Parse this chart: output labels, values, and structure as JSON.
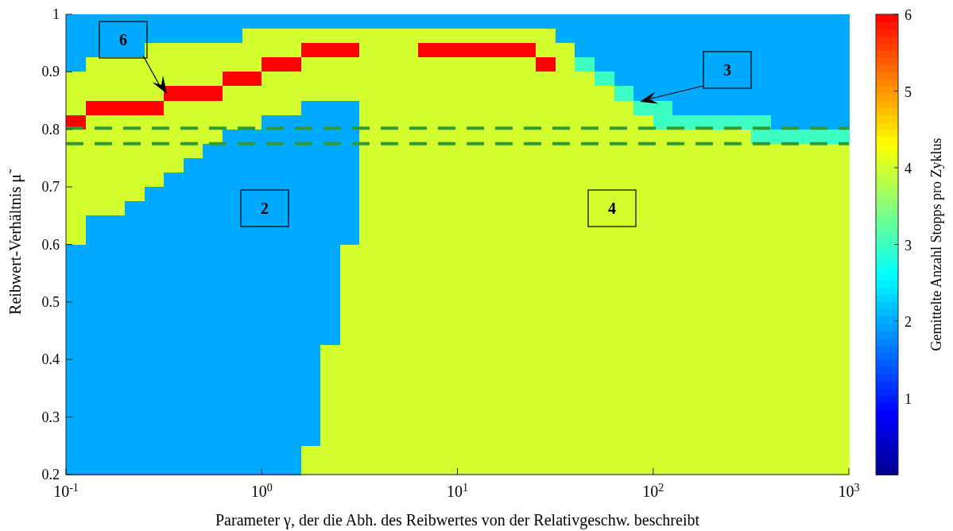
{
  "chart_data": {
    "type": "heatmap",
    "xlabel": "Parameter γ, der die Abh. des Reibwertes von der Relativgeschw. beschreibt",
    "ylabel": "Reibwert-Verhältnis μ̃",
    "clabel": "Gemittelte Anzahl Stopps pro Zyklus",
    "log": "x",
    "xlim": [
      0.1,
      1000
    ],
    "xticks": [
      {
        "value": 0.1,
        "label": "10$^{-1}$"
      },
      {
        "value": 1,
        "label": "10$^{0}$"
      },
      {
        "value": 10,
        "label": "10$^{1}$"
      },
      {
        "value": 100,
        "label": "10$^{2}$"
      },
      {
        "value": 1000,
        "label": "10$^{3}$"
      }
    ],
    "ylim": [
      0.2,
      1
    ],
    "yticks": [
      0.2,
      0.3,
      0.4,
      0.5,
      0.6,
      0.7,
      0.8,
      0.9,
      1
    ],
    "clim": [
      0,
      6
    ],
    "cticks": [
      1,
      2,
      3,
      4,
      5,
      6
    ],
    "cells": [
      [
        2,
        2,
        2,
        2,
        2,
        2,
        2,
        2,
        2,
        2,
        2,
        2,
        2,
        2,
        2,
        2,
        2,
        2,
        2,
        2,
        2,
        2,
        2,
        2,
        2,
        2,
        2,
        2,
        2,
        2,
        2,
        2,
        2,
        2,
        2,
        2,
        2,
        2,
        2,
        2
      ],
      [
        2,
        2,
        2,
        2,
        2,
        2,
        2,
        2,
        2,
        4,
        4,
        4,
        4,
        4,
        4,
        4,
        4,
        4,
        4,
        4,
        4,
        4,
        4,
        4,
        4,
        2,
        2,
        2,
        2,
        2,
        2,
        2,
        2,
        2,
        2,
        2,
        2,
        2,
        2,
        2
      ],
      [
        2,
        2,
        2,
        2,
        4,
        4,
        4,
        4,
        4,
        4,
        4,
        4,
        6,
        6,
        6,
        4,
        4,
        4,
        6,
        6,
        6,
        6,
        6,
        6,
        4,
        4,
        2,
        2,
        2,
        2,
        2,
        2,
        2,
        2,
        2,
        2,
        2,
        2,
        2,
        2
      ],
      [
        2,
        4,
        4,
        4,
        4,
        4,
        4,
        4,
        4,
        4,
        6,
        6,
        4,
        4,
        4,
        4,
        4,
        4,
        4,
        4,
        4,
        4,
        4,
        4,
        6,
        4,
        3,
        2,
        2,
        2,
        2,
        2,
        2,
        2,
        2,
        2,
        2,
        2,
        2,
        2
      ],
      [
        4,
        4,
        4,
        4,
        4,
        4,
        4,
        4,
        6,
        6,
        4,
        4,
        4,
        4,
        4,
        4,
        4,
        4,
        4,
        4,
        4,
        4,
        4,
        4,
        4,
        4,
        4,
        3,
        2,
        2,
        2,
        2,
        2,
        2,
        2,
        2,
        2,
        2,
        2,
        2
      ],
      [
        4,
        4,
        4,
        4,
        4,
        6,
        6,
        6,
        4,
        4,
        4,
        4,
        4,
        4,
        4,
        4,
        4,
        4,
        4,
        4,
        4,
        4,
        4,
        4,
        4,
        4,
        4,
        4,
        3,
        2,
        2,
        2,
        2,
        2,
        2,
        2,
        2,
        2,
        2,
        2
      ],
      [
        4,
        6,
        6,
        6,
        6,
        4,
        4,
        4,
        4,
        4,
        4,
        4,
        2,
        2,
        2,
        4,
        4,
        4,
        4,
        4,
        4,
        4,
        4,
        4,
        4,
        4,
        4,
        4,
        4,
        3,
        3,
        2,
        2,
        2,
        2,
        2,
        2,
        2,
        2,
        2
      ],
      [
        6,
        4,
        4,
        4,
        4,
        4,
        4,
        4,
        4,
        4,
        2,
        2,
        2,
        2,
        2,
        4,
        4,
        4,
        4,
        4,
        4,
        4,
        4,
        4,
        4,
        4,
        4,
        4,
        4,
        4,
        3,
        3,
        3,
        3,
        3,
        3,
        2,
        2,
        2,
        2
      ],
      [
        4,
        4,
        4,
        4,
        4,
        4,
        4,
        4,
        2,
        2,
        2,
        2,
        2,
        2,
        2,
        4,
        4,
        4,
        4,
        4,
        4,
        4,
        4,
        4,
        4,
        4,
        4,
        4,
        4,
        4,
        4,
        4,
        4,
        4,
        4,
        3,
        3,
        3,
        3,
        3
      ],
      [
        4,
        4,
        4,
        4,
        4,
        4,
        4,
        2,
        2,
        2,
        2,
        2,
        2,
        2,
        2,
        4,
        4,
        4,
        4,
        4,
        4,
        4,
        4,
        4,
        4,
        4,
        4,
        4,
        4,
        4,
        4,
        4,
        4,
        4,
        4,
        4,
        4,
        4,
        4,
        4
      ],
      [
        4,
        4,
        4,
        4,
        4,
        4,
        2,
        2,
        2,
        2,
        2,
        2,
        2,
        2,
        2,
        4,
        4,
        4,
        4,
        4,
        4,
        4,
        4,
        4,
        4,
        4,
        4,
        4,
        4,
        4,
        4,
        4,
        4,
        4,
        4,
        4,
        4,
        4,
        4,
        4
      ],
      [
        4,
        4,
        4,
        4,
        4,
        2,
        2,
        2,
        2,
        2,
        2,
        2,
        2,
        2,
        2,
        4,
        4,
        4,
        4,
        4,
        4,
        4,
        4,
        4,
        4,
        4,
        4,
        4,
        4,
        4,
        4,
        4,
        4,
        4,
        4,
        4,
        4,
        4,
        4,
        4
      ],
      [
        4,
        4,
        4,
        4,
        2,
        2,
        2,
        2,
        2,
        2,
        2,
        2,
        2,
        2,
        2,
        4,
        4,
        4,
        4,
        4,
        4,
        4,
        4,
        4,
        4,
        4,
        4,
        4,
        4,
        4,
        4,
        4,
        4,
        4,
        4,
        4,
        4,
        4,
        4,
        4
      ],
      [
        4,
        4,
        4,
        2,
        2,
        2,
        2,
        2,
        2,
        2,
        2,
        2,
        2,
        2,
        2,
        4,
        4,
        4,
        4,
        4,
        4,
        4,
        4,
        4,
        4,
        4,
        4,
        4,
        4,
        4,
        4,
        4,
        4,
        4,
        4,
        4,
        4,
        4,
        4,
        4
      ],
      [
        4,
        2,
        2,
        2,
        2,
        2,
        2,
        2,
        2,
        2,
        2,
        2,
        2,
        2,
        2,
        4,
        4,
        4,
        4,
        4,
        4,
        4,
        4,
        4,
        4,
        4,
        4,
        4,
        4,
        4,
        4,
        4,
        4,
        4,
        4,
        4,
        4,
        4,
        4,
        4
      ],
      [
        4,
        2,
        2,
        2,
        2,
        2,
        2,
        2,
        2,
        2,
        2,
        2,
        2,
        2,
        2,
        4,
        4,
        4,
        4,
        4,
        4,
        4,
        4,
        4,
        4,
        4,
        4,
        4,
        4,
        4,
        4,
        4,
        4,
        4,
        4,
        4,
        4,
        4,
        4,
        4
      ],
      [
        2,
        2,
        2,
        2,
        2,
        2,
        2,
        2,
        2,
        2,
        2,
        2,
        2,
        2,
        4,
        4,
        4,
        4,
        4,
        4,
        4,
        4,
        4,
        4,
        4,
        4,
        4,
        4,
        4,
        4,
        4,
        4,
        4,
        4,
        4,
        4,
        4,
        4,
        4,
        4
      ],
      [
        2,
        2,
        2,
        2,
        2,
        2,
        2,
        2,
        2,
        2,
        2,
        2,
        2,
        2,
        4,
        4,
        4,
        4,
        4,
        4,
        4,
        4,
        4,
        4,
        4,
        4,
        4,
        4,
        4,
        4,
        4,
        4,
        4,
        4,
        4,
        4,
        4,
        4,
        4,
        4
      ],
      [
        2,
        2,
        2,
        2,
        2,
        2,
        2,
        2,
        2,
        2,
        2,
        2,
        2,
        2,
        4,
        4,
        4,
        4,
        4,
        4,
        4,
        4,
        4,
        4,
        4,
        4,
        4,
        4,
        4,
        4,
        4,
        4,
        4,
        4,
        4,
        4,
        4,
        4,
        4,
        4
      ],
      [
        2,
        2,
        2,
        2,
        2,
        2,
        2,
        2,
        2,
        2,
        2,
        2,
        2,
        2,
        4,
        4,
        4,
        4,
        4,
        4,
        4,
        4,
        4,
        4,
        4,
        4,
        4,
        4,
        4,
        4,
        4,
        4,
        4,
        4,
        4,
        4,
        4,
        4,
        4,
        4
      ],
      [
        2,
        2,
        2,
        2,
        2,
        2,
        2,
        2,
        2,
        2,
        2,
        2,
        2,
        2,
        4,
        4,
        4,
        4,
        4,
        4,
        4,
        4,
        4,
        4,
        4,
        4,
        4,
        4,
        4,
        4,
        4,
        4,
        4,
        4,
        4,
        4,
        4,
        4,
        4,
        4
      ],
      [
        2,
        2,
        2,
        2,
        2,
        2,
        2,
        2,
        2,
        2,
        2,
        2,
        2,
        2,
        4,
        4,
        4,
        4,
        4,
        4,
        4,
        4,
        4,
        4,
        4,
        4,
        4,
        4,
        4,
        4,
        4,
        4,
        4,
        4,
        4,
        4,
        4,
        4,
        4,
        4
      ],
      [
        2,
        2,
        2,
        2,
        2,
        2,
        2,
        2,
        2,
        2,
        2,
        2,
        2,
        2,
        4,
        4,
        4,
        4,
        4,
        4,
        4,
        4,
        4,
        4,
        4,
        4,
        4,
        4,
        4,
        4,
        4,
        4,
        4,
        4,
        4,
        4,
        4,
        4,
        4,
        4
      ],
      [
        2,
        2,
        2,
        2,
        2,
        2,
        2,
        2,
        2,
        2,
        2,
        2,
        2,
        4,
        4,
        4,
        4,
        4,
        4,
        4,
        4,
        4,
        4,
        4,
        4,
        4,
        4,
        4,
        4,
        4,
        4,
        4,
        4,
        4,
        4,
        4,
        4,
        4,
        4,
        4
      ],
      [
        2,
        2,
        2,
        2,
        2,
        2,
        2,
        2,
        2,
        2,
        2,
        2,
        2,
        4,
        4,
        4,
        4,
        4,
        4,
        4,
        4,
        4,
        4,
        4,
        4,
        4,
        4,
        4,
        4,
        4,
        4,
        4,
        4,
        4,
        4,
        4,
        4,
        4,
        4,
        4
      ],
      [
        2,
        2,
        2,
        2,
        2,
        2,
        2,
        2,
        2,
        2,
        2,
        2,
        2,
        4,
        4,
        4,
        4,
        4,
        4,
        4,
        4,
        4,
        4,
        4,
        4,
        4,
        4,
        4,
        4,
        4,
        4,
        4,
        4,
        4,
        4,
        4,
        4,
        4,
        4,
        4
      ],
      [
        2,
        2,
        2,
        2,
        2,
        2,
        2,
        2,
        2,
        2,
        2,
        2,
        2,
        4,
        4,
        4,
        4,
        4,
        4,
        4,
        4,
        4,
        4,
        4,
        4,
        4,
        4,
        4,
        4,
        4,
        4,
        4,
        4,
        4,
        4,
        4,
        4,
        4,
        4,
        4
      ],
      [
        2,
        2,
        2,
        2,
        2,
        2,
        2,
        2,
        2,
        2,
        2,
        2,
        2,
        4,
        4,
        4,
        4,
        4,
        4,
        4,
        4,
        4,
        4,
        4,
        4,
        4,
        4,
        4,
        4,
        4,
        4,
        4,
        4,
        4,
        4,
        4,
        4,
        4,
        4,
        4
      ],
      [
        2,
        2,
        2,
        2,
        2,
        2,
        2,
        2,
        2,
        2,
        2,
        2,
        2,
        4,
        4,
        4,
        4,
        4,
        4,
        4,
        4,
        4,
        4,
        4,
        4,
        4,
        4,
        4,
        4,
        4,
        4,
        4,
        4,
        4,
        4,
        4,
        4,
        4,
        4,
        4
      ],
      [
        2,
        2,
        2,
        2,
        2,
        2,
        2,
        2,
        2,
        2,
        2,
        2,
        2,
        4,
        4,
        4,
        4,
        4,
        4,
        4,
        4,
        4,
        4,
        4,
        4,
        4,
        4,
        4,
        4,
        4,
        4,
        4,
        4,
        4,
        4,
        4,
        4,
        4,
        4,
        4
      ],
      [
        2,
        2,
        2,
        2,
        2,
        2,
        2,
        2,
        2,
        2,
        2,
        2,
        4,
        4,
        4,
        4,
        4,
        4,
        4,
        4,
        4,
        4,
        4,
        4,
        4,
        4,
        4,
        4,
        4,
        4,
        4,
        4,
        4,
        4,
        4,
        4,
        4,
        4,
        4,
        4
      ],
      [
        2,
        2,
        2,
        2,
        2,
        2,
        2,
        2,
        2,
        2,
        2,
        2,
        4,
        4,
        4,
        4,
        4,
        4,
        4,
        4,
        4,
        4,
        4,
        4,
        4,
        4,
        4,
        4,
        4,
        4,
        4,
        4,
        4,
        4,
        4,
        4,
        4,
        4,
        4,
        4
      ]
    ],
    "ref_lines": [
      {
        "axis": "y",
        "value": 0.802,
        "color": "#339933",
        "line_style": "dashed"
      },
      {
        "axis": "y",
        "value": 0.775,
        "color": "#339933",
        "line_style": "dashed"
      }
    ],
    "annotations": [
      "6",
      "3",
      "2",
      "4"
    ]
  }
}
